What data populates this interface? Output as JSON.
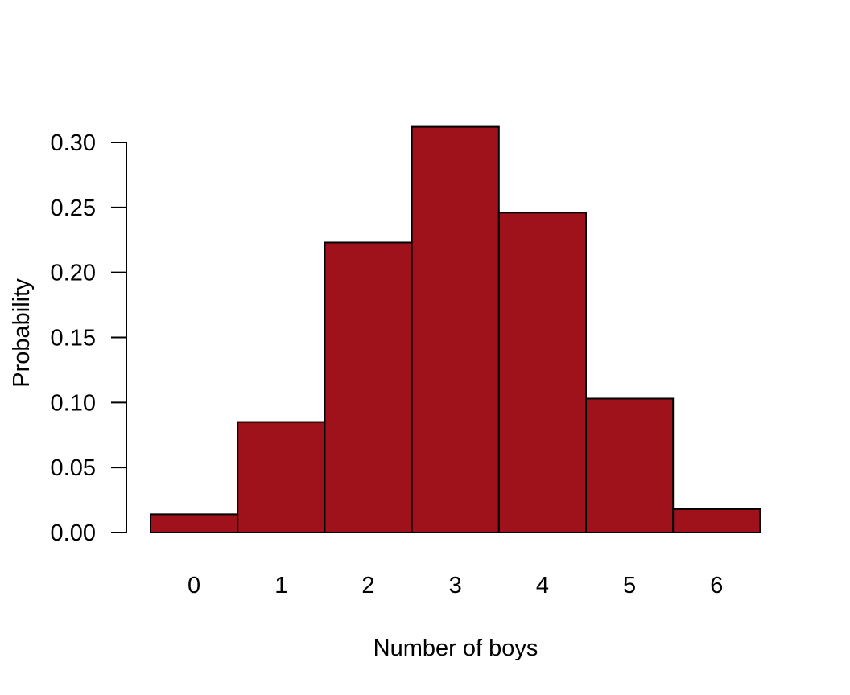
{
  "chart_data": {
    "type": "bar",
    "title": "",
    "xlabel": "Number of boys",
    "ylabel": "Probability",
    "categories": [
      "0",
      "1",
      "2",
      "3",
      "4",
      "5",
      "6"
    ],
    "values": [
      0.014,
      0.085,
      0.223,
      0.312,
      0.246,
      0.103,
      0.018
    ],
    "ylim": [
      0,
      0.3
    ],
    "yticks": [
      "0.00",
      "0.05",
      "0.10",
      "0.15",
      "0.20",
      "0.25",
      "0.30"
    ],
    "grid": false,
    "legend": "none",
    "colors": {
      "bar_fill": "#A0121B",
      "bar_stroke": "#000000",
      "axis": "#000000",
      "background": "#FFFFFF"
    }
  }
}
